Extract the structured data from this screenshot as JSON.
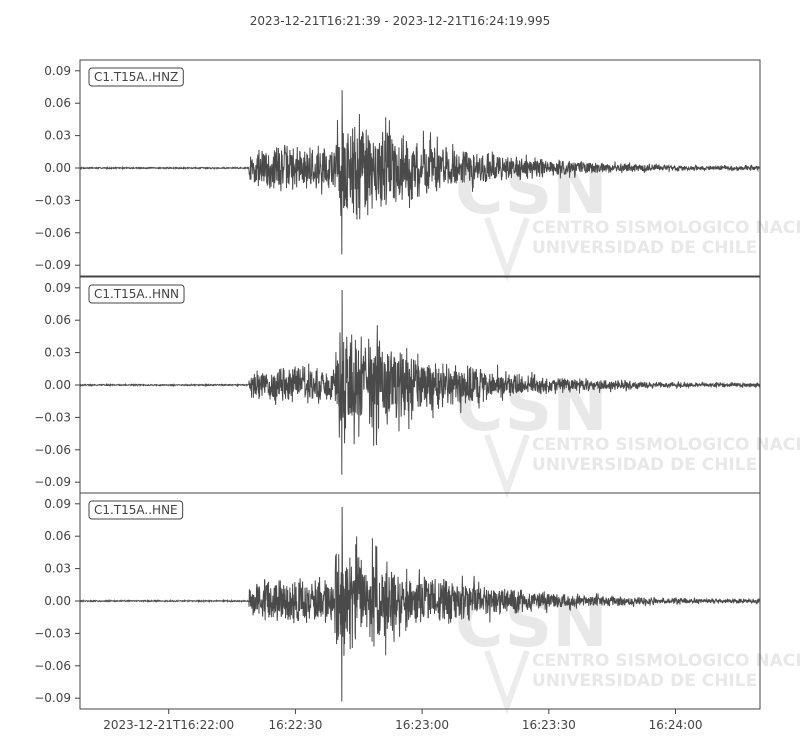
{
  "chart_data": {
    "type": "line",
    "title": "2023-12-21T16:21:39  -  2023-12-21T16:24:19.995",
    "x_tick_labels": [
      "2023-12-21T16:22:00",
      "16:22:30",
      "16:23:00",
      "16:23:30",
      "16:24:00"
    ],
    "x_tick_seconds": [
      21,
      51,
      81,
      111,
      141
    ],
    "x_range_seconds": [
      0,
      161
    ],
    "y_tick_labels": [
      "0.09",
      "0.06",
      "0.03",
      "0.00",
      "−0.03",
      "−0.06",
      "−0.09"
    ],
    "y_tick_values": [
      0.09,
      0.06,
      0.03,
      0.0,
      -0.03,
      -0.06,
      -0.09
    ],
    "ylim": [
      -0.1,
      0.1
    ],
    "line_color": "#4a4a4a",
    "channels": [
      {
        "name": "C1.T15A..HNZ",
        "p_onset_s": 40,
        "s_onset_s": 60,
        "p_amp": 0.025,
        "s_amp": 0.068,
        "peak_pos": 0.072,
        "peak_neg": -0.08,
        "seed": 7
      },
      {
        "name": "C1.T15A..HNN",
        "p_onset_s": 40,
        "s_onset_s": 60,
        "p_amp": 0.02,
        "s_amp": 0.07,
        "peak_pos": 0.088,
        "peak_neg": -0.083,
        "seed": 19
      },
      {
        "name": "C1.T15A..HNE",
        "p_onset_s": 40,
        "s_onset_s": 60,
        "p_amp": 0.025,
        "s_amp": 0.07,
        "peak_pos": 0.087,
        "peak_neg": -0.093,
        "seed": 31
      }
    ],
    "watermark": {
      "text_big": "CSN",
      "line1": "CENTRO SISMOLOGICO NACIONAL",
      "line2": "UNIVERSIDAD DE CHILE"
    }
  }
}
